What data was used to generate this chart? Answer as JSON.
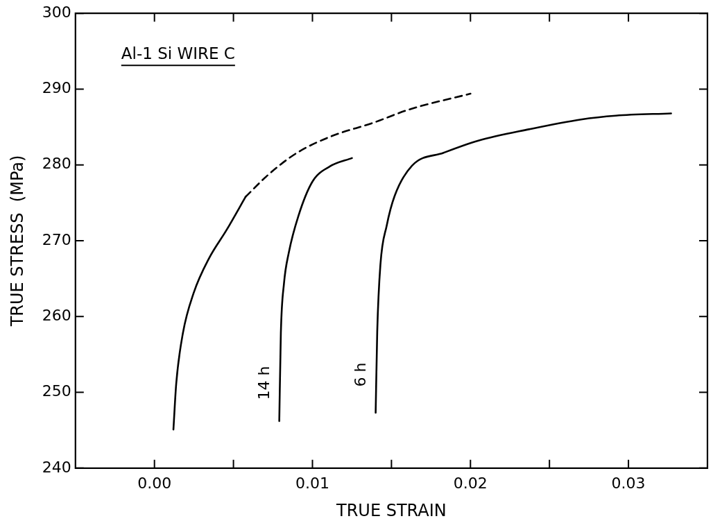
{
  "chart_data": {
    "type": "line",
    "title": "Al-1 Si WIRE C",
    "xlabel": "TRUE STRAIN",
    "ylabel": "TRUE STRESS  (MPa)",
    "xlim": [
      -0.005,
      0.035
    ],
    "xticks": [
      {
        "value": 0,
        "label": "0.00"
      },
      {
        "value": 0.005,
        "label": null
      },
      {
        "value": 0.01,
        "label": "0.01"
      },
      {
        "value": 0.015,
        "label": null
      },
      {
        "value": 0.02,
        "label": "0.02"
      },
      {
        "value": 0.025,
        "label": null
      },
      {
        "value": 0.03,
        "label": "0.03"
      }
    ],
    "ylim": [
      240,
      300
    ],
    "yticks": [
      240,
      250,
      260,
      270,
      280,
      290,
      300
    ],
    "grid": false,
    "legend": false,
    "marker": "none",
    "series": [
      {
        "color": "#000000",
        "line_style": "solid",
        "x": [
          0.0012,
          0.00138,
          0.0018,
          0.00248,
          0.00346,
          0.00456,
          0.00577
        ],
        "values": [
          245.1,
          251.2,
          257.8,
          263.1,
          267.7,
          271.4,
          275.8
        ]
      },
      {
        "color": "#000000",
        "line_style": "dashed",
        "x": [
          0.00577,
          0.0072,
          0.00895,
          0.0111,
          0.0139,
          0.0161,
          0.02
        ],
        "values": [
          275.8,
          278.7,
          281.5,
          283.7,
          285.6,
          287.3,
          289.4
        ]
      },
      {
        "color": "#000000",
        "line_style": "solid",
        "x": [
          0.0079,
          0.008,
          0.0082,
          0.0085,
          0.0091,
          0.01,
          0.0111,
          0.0125
        ],
        "values": [
          246.2,
          257.8,
          264.4,
          268.4,
          273.2,
          277.8,
          279.8,
          280.9
        ]
      },
      {
        "color": "#000000",
        "line_style": "solid",
        "x": [
          0.014,
          0.0141,
          0.0143,
          0.0147,
          0.0152,
          0.0163,
          0.0183,
          0.0205,
          0.0237,
          0.027,
          0.0292,
          0.0327
        ],
        "values": [
          247.3,
          258.0,
          266.8,
          272.0,
          275.9,
          279.9,
          281.6,
          283.2,
          284.7,
          286.0,
          286.5,
          286.8
        ]
      }
    ],
    "annotations": [
      "14 h",
      "6 h"
    ]
  }
}
